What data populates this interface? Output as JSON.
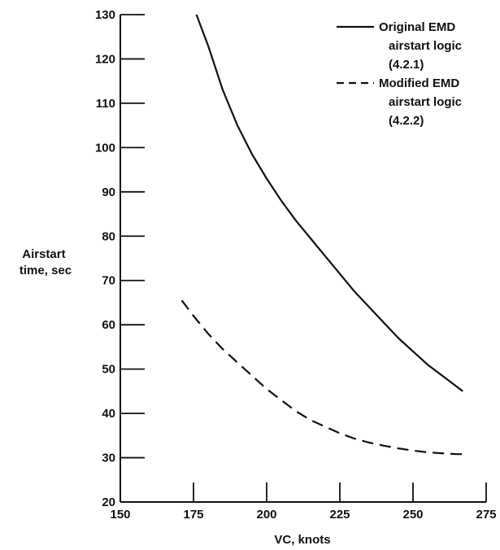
{
  "chart_data": {
    "type": "line",
    "title": "",
    "xlabel": "VC, knots",
    "ylabel_lines": [
      "Airstart",
      "time, sec"
    ],
    "xlim": [
      150,
      275
    ],
    "ylim": [
      20,
      130
    ],
    "x_ticks": [
      150,
      175,
      200,
      225,
      250,
      275
    ],
    "y_ticks": [
      20,
      30,
      40,
      50,
      60,
      70,
      80,
      90,
      100,
      110,
      120,
      130
    ],
    "grid": false,
    "legend_position": "top-right",
    "series": [
      {
        "name": "Original EMD airstart logic (4.2.1)",
        "legend_lines": [
          "Original EMD",
          "airstart logic",
          "(4.2.1)"
        ],
        "style": "solid",
        "color": "#111111",
        "x": [
          176,
          180,
          185,
          190,
          195,
          200,
          205,
          210,
          215,
          220,
          225,
          230,
          235,
          240,
          245,
          250,
          255,
          260,
          265,
          267
        ],
        "y": [
          130,
          123,
          113,
          105,
          98.5,
          93,
          88,
          83.5,
          79.5,
          75.5,
          71.5,
          67.5,
          64,
          60.5,
          57,
          54,
          51,
          48.5,
          46,
          45
        ]
      },
      {
        "name": "Modified EMD airstart logic (4.2.2)",
        "legend_lines": [
          "Modified EMD",
          "airstart logic",
          "(4.2.2)"
        ],
        "style": "dashed",
        "color": "#111111",
        "x": [
          171,
          175,
          180,
          185,
          190,
          195,
          200,
          205,
          210,
          215,
          220,
          225,
          230,
          235,
          240,
          245,
          250,
          255,
          260,
          265,
          267
        ],
        "y": [
          65.5,
          62,
          58,
          54.5,
          51.5,
          48.5,
          45.5,
          43,
          40.5,
          38.5,
          37,
          35.5,
          34.3,
          33.4,
          32.7,
          32.1,
          31.6,
          31.2,
          31,
          30.8,
          30.8
        ]
      }
    ]
  }
}
